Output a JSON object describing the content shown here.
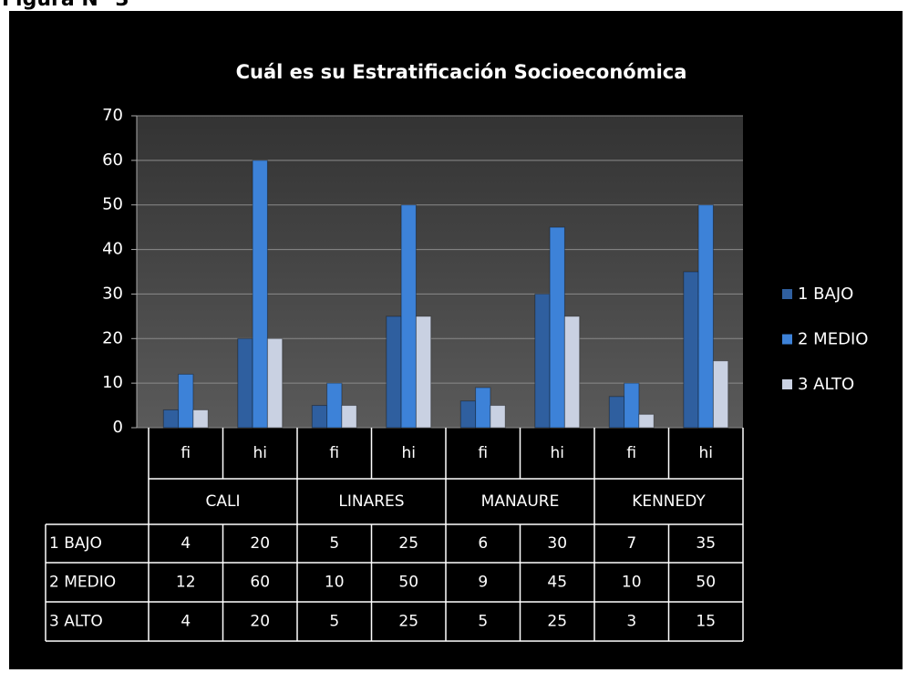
{
  "header": {
    "caption": "Figura N° 3"
  },
  "chart_data": {
    "type": "bar",
    "title": "Cuál es su Estratificación Socioeconómica",
    "groups": [
      "CALI",
      "LINARES",
      "MANAURE",
      "KENNEDY"
    ],
    "categories": [
      "fi",
      "hi",
      "fi",
      "hi",
      "fi",
      "hi",
      "fi",
      "hi"
    ],
    "series": [
      {
        "name": "1 BAJO",
        "color": "#2f5f9f",
        "values": [
          4,
          20,
          5,
          25,
          6,
          30,
          7,
          35
        ]
      },
      {
        "name": "2 MEDIO",
        "color": "#3d82d8",
        "values": [
          12,
          60,
          10,
          50,
          9,
          45,
          10,
          50
        ]
      },
      {
        "name": "3 ALTO",
        "color": "#c9d1e2",
        "values": [
          4,
          20,
          5,
          25,
          5,
          25,
          3,
          15
        ]
      }
    ],
    "ylim": [
      0,
      70
    ],
    "yticks": [
      0,
      10,
      20,
      30,
      40,
      50,
      60,
      70
    ],
    "grid": true,
    "legend": "right"
  }
}
